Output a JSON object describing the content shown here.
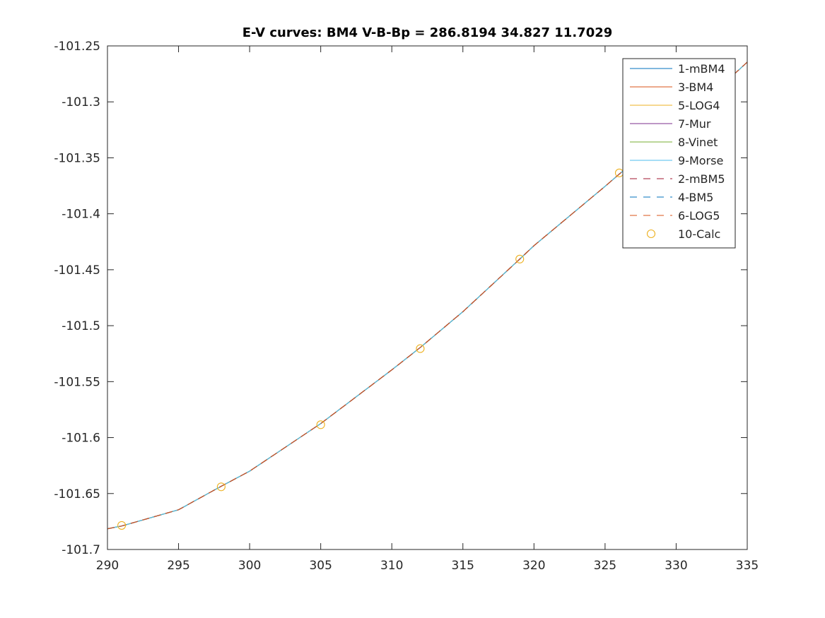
{
  "chart_data": {
    "type": "line",
    "title": "E-V curves: BM4 V-B-Bp =  286.8194   34.827   11.7029",
    "xlabel": "",
    "ylabel": "",
    "xlim": [
      290,
      335
    ],
    "ylim": [
      -101.7,
      -101.25
    ],
    "x_ticks": [
      "290",
      "295",
      "300",
      "305",
      "310",
      "315",
      "320",
      "325",
      "330",
      "335"
    ],
    "y_ticks": [
      "-101.25",
      "-101.3",
      "-101.35",
      "-101.4",
      "-101.45",
      "-101.5",
      "-101.55",
      "-101.6",
      "-101.65",
      "-101.7"
    ],
    "grid": false,
    "legend_position": "top-right",
    "series": [
      {
        "name": "1-mBM4",
        "color": "#0072BD",
        "style": "solid"
      },
      {
        "name": "3-BM4",
        "color": "#D95319",
        "style": "solid"
      },
      {
        "name": "5-LOG4",
        "color": "#EDB120",
        "style": "solid"
      },
      {
        "name": "7-Mur",
        "color": "#7E2F8E",
        "style": "solid"
      },
      {
        "name": "8-Vinet",
        "color": "#77AC30",
        "style": "solid"
      },
      {
        "name": "9-Morse",
        "color": "#4DBEEE",
        "style": "solid"
      },
      {
        "name": "2-mBM5",
        "color": "#A2142F",
        "style": "dashed"
      },
      {
        "name": "4-BM5",
        "color": "#0072BD",
        "style": "dashed"
      },
      {
        "name": "6-LOG5",
        "color": "#D95319",
        "style": "dashed"
      },
      {
        "name": "10-Calc",
        "color": "#EDB120",
        "style": "marker"
      }
    ],
    "curve": {
      "x": [
        290,
        291,
        295,
        298,
        300,
        305,
        310,
        312,
        315,
        319,
        320,
        325,
        326,
        330,
        335
      ],
      "y": [
        -101.6815,
        -101.679,
        -101.6645,
        -101.6435,
        -101.63,
        -101.5875,
        -101.5395,
        -101.5195,
        -101.4875,
        -101.4405,
        -101.4285,
        -101.3755,
        -101.3645,
        -101.323,
        -101.2645
      ]
    },
    "calc_points": {
      "x": [
        291,
        298,
        305,
        312,
        319,
        326
      ],
      "y": [
        -101.6785,
        -101.644,
        -101.5885,
        -101.5205,
        -101.4405,
        -101.3635
      ]
    }
  }
}
